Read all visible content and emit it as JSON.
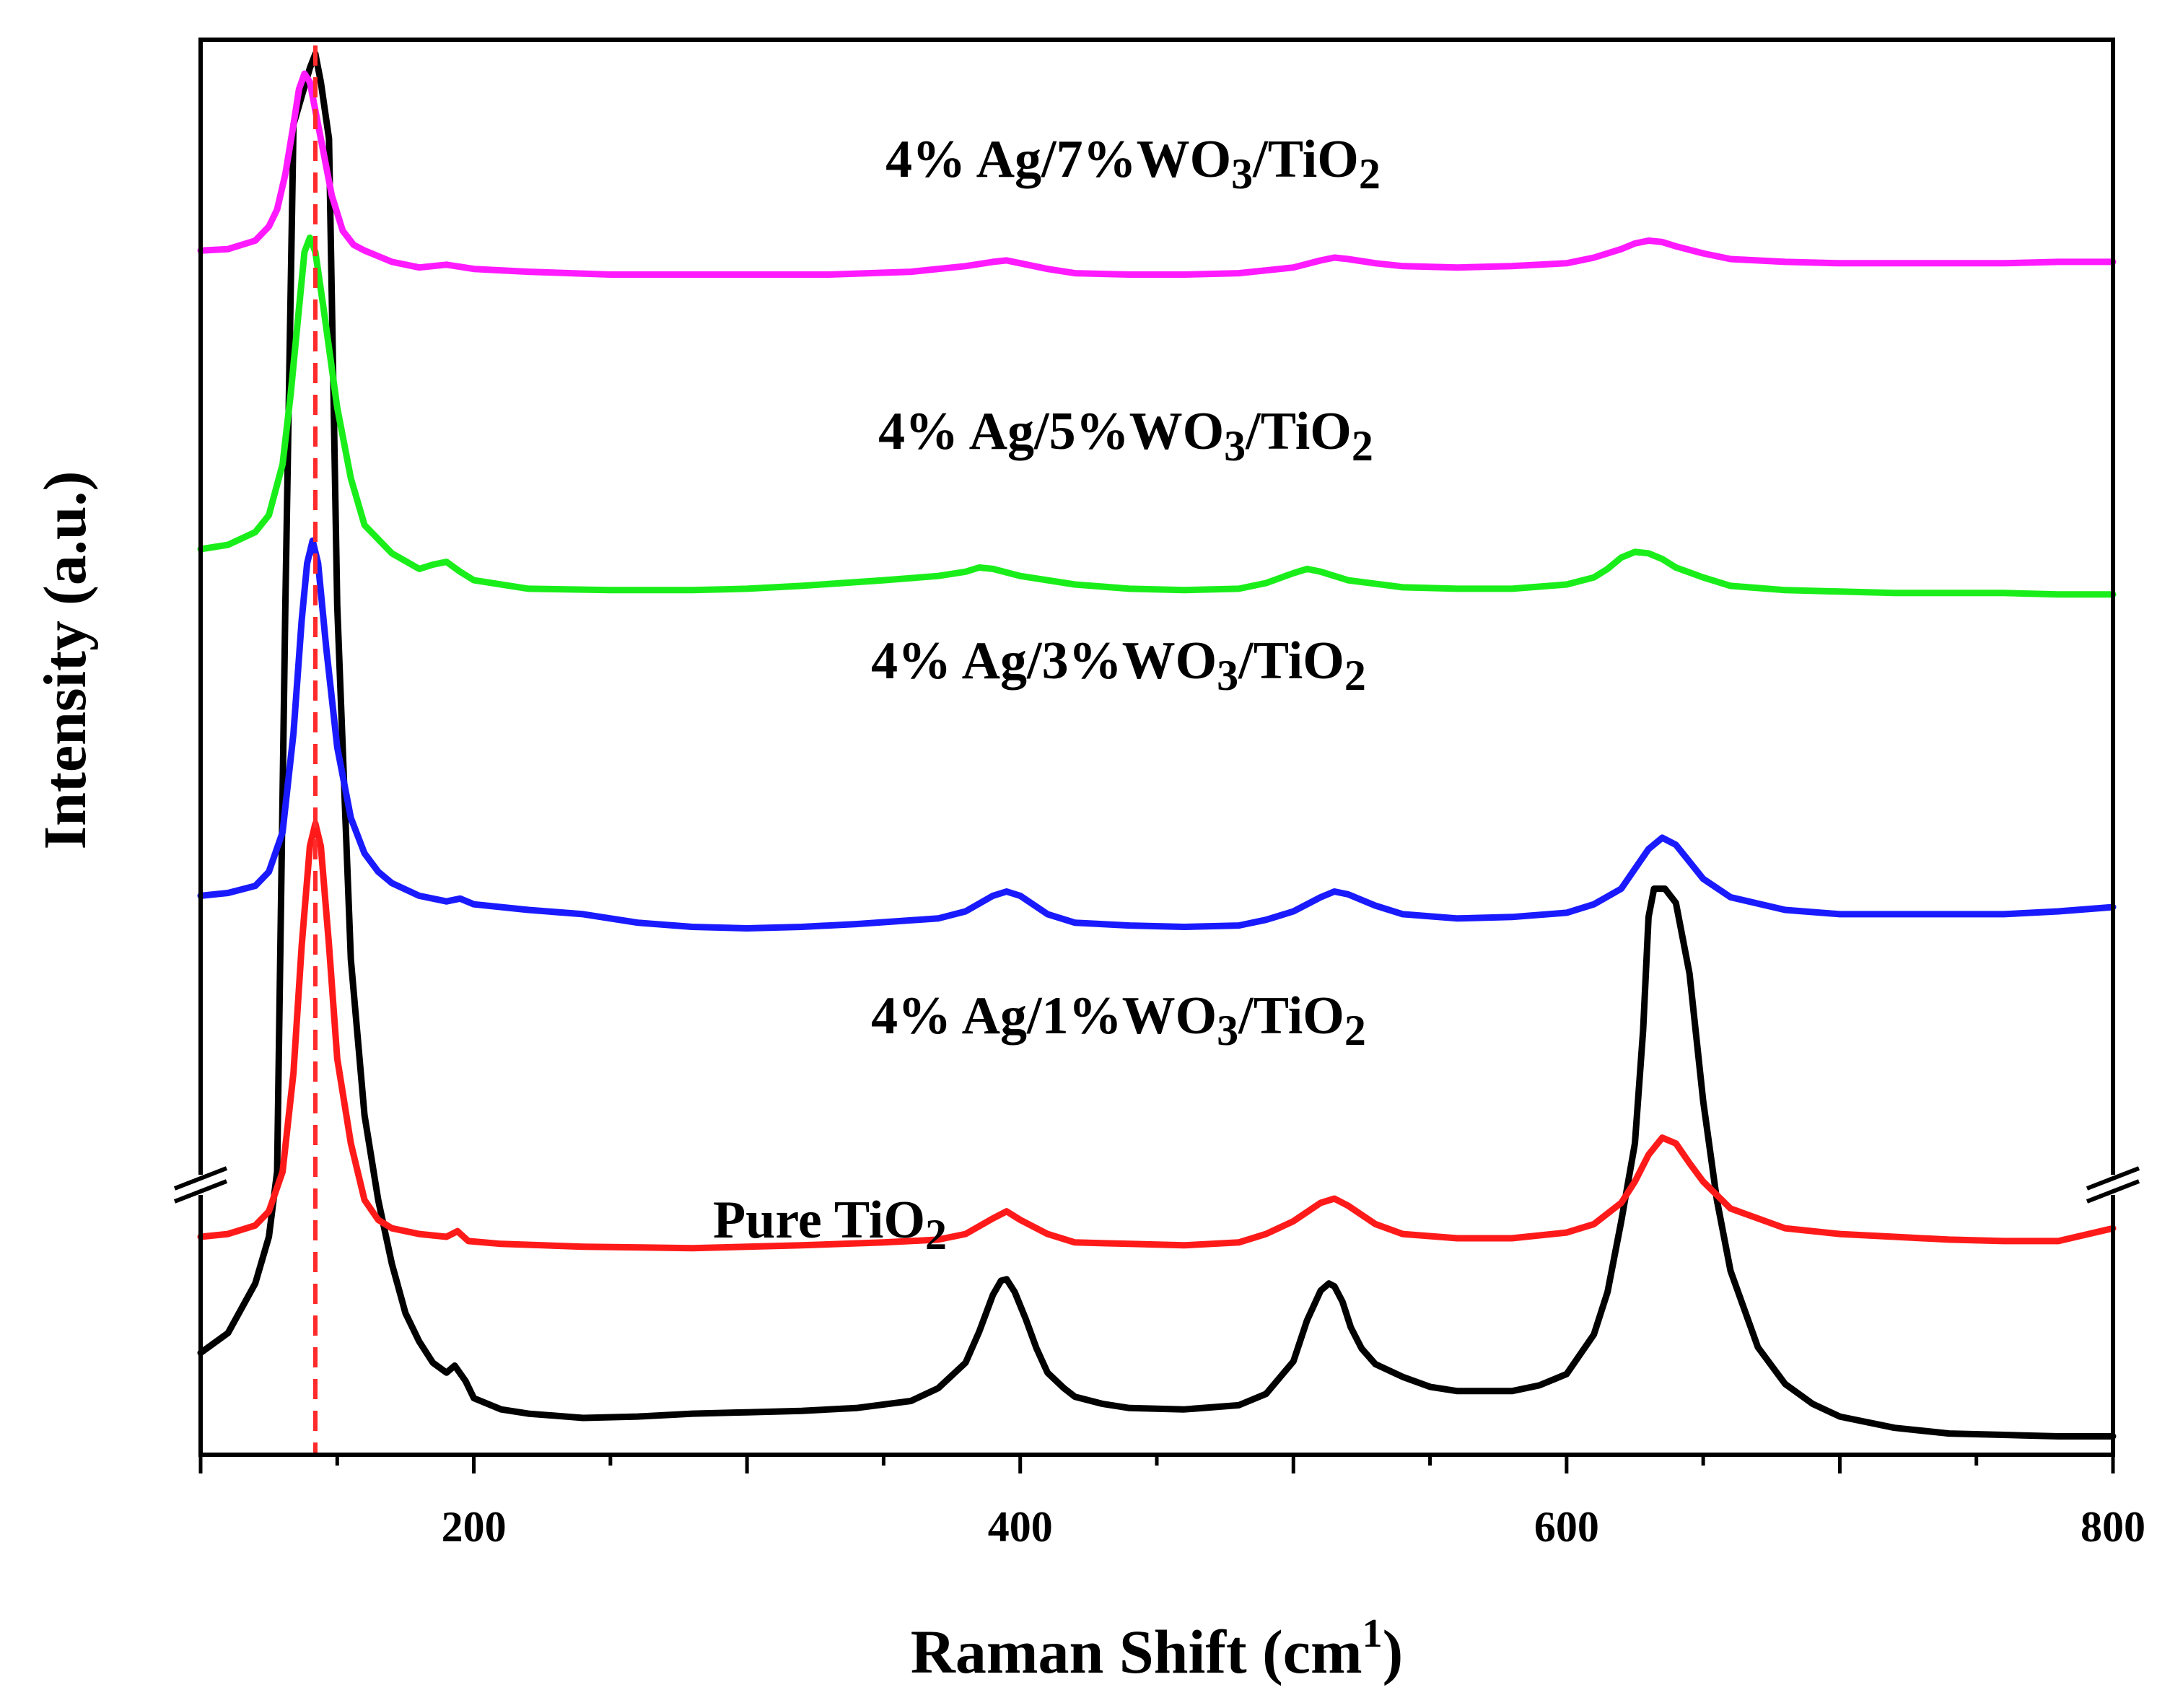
{
  "chart_data": {
    "type": "line",
    "title": "",
    "xlabel": "Raman Shift (cm",
    "xlabel_sup": "1",
    "xlabel_close": ")",
    "ylabel": "Intensity (a.u.)",
    "xlim": [
      100,
      800
    ],
    "ylim": [
      0,
      100
    ],
    "xticks": [
      200,
      400,
      600,
      800
    ],
    "y_ticks_shown": false,
    "axis_break": "y",
    "reference_line": {
      "x": 142,
      "color": "#ff2a2a",
      "style": "dashed"
    },
    "series": [
      {
        "name": "Pure TiO2",
        "color": "#000000",
        "label_parts": [
          "Pure TiO",
          "2"
        ],
        "x": [
          100,
          110,
          120,
          125,
          128,
          131,
          134,
          137,
          140,
          142,
          144,
          147,
          150,
          155,
          160,
          165,
          170,
          175,
          180,
          185,
          190,
          193,
          197,
          200,
          210,
          220,
          240,
          260,
          280,
          300,
          320,
          340,
          360,
          370,
          380,
          385,
          390,
          393,
          395,
          398,
          402,
          406,
          410,
          416,
          420,
          430,
          440,
          460,
          480,
          490,
          500,
          505,
          510,
          513,
          515,
          518,
          521,
          525,
          530,
          540,
          550,
          560,
          570,
          580,
          590,
          600,
          610,
          615,
          620,
          625,
          628,
          630,
          632,
          636,
          640,
          645,
          650,
          655,
          660,
          670,
          680,
          690,
          700,
          720,
          740,
          760,
          780,
          800
        ],
        "y": [
          7.2,
          8.6,
          12.1,
          15.4,
          20,
          60,
          94,
          96,
          98,
          99,
          97,
          93,
          60,
          35,
          24,
          18,
          13.5,
          10,
          8,
          6.5,
          5.8,
          6.3,
          5.2,
          4.0,
          3.2,
          2.9,
          2.6,
          2.7,
          2.9,
          3.0,
          3.1,
          3.3,
          3.8,
          4.7,
          6.5,
          8.7,
          11.3,
          12.3,
          12.4,
          11.5,
          9.6,
          7.5,
          5.8,
          4.7,
          4.1,
          3.6,
          3.3,
          3.2,
          3.5,
          4.3,
          6.6,
          9.5,
          11.6,
          12.1,
          11.9,
          10.8,
          9.0,
          7.5,
          6.4,
          5.5,
          4.8,
          4.5,
          4.5,
          4.5,
          4.9,
          5.7,
          8.5,
          11.5,
          16.5,
          22,
          30,
          38,
          40,
          40,
          39,
          34,
          25,
          18,
          13,
          7.6,
          5.0,
          3.6,
          2.7,
          1.9,
          1.5,
          1.4,
          1.3,
          1.3
        ]
      },
      {
        "name": "4% Ag/1%WO3/TiO2",
        "color": "#ff1a1a",
        "label_parts": [
          "4% Ag/1%WO",
          "3",
          "/TiO",
          "2"
        ],
        "x": [
          100,
          110,
          120,
          125,
          130,
          134,
          137,
          140,
          142,
          144,
          147,
          150,
          155,
          160,
          165,
          170,
          180,
          190,
          194,
          198,
          210,
          240,
          280,
          320,
          350,
          370,
          380,
          390,
          395,
          400,
          410,
          420,
          440,
          460,
          480,
          490,
          500,
          510,
          515,
          520,
          530,
          540,
          560,
          580,
          600,
          610,
          620,
          625,
          630,
          635,
          640,
          645,
          650,
          660,
          680,
          700,
          720,
          740,
          760,
          780,
          800
        ],
        "y": [
          15.4,
          15.6,
          16.2,
          17.2,
          20,
          27,
          36,
          43,
          44.6,
          43,
          36,
          28,
          22,
          18,
          16.6,
          16.0,
          15.6,
          15.4,
          15.8,
          15.1,
          14.9,
          14.7,
          14.6,
          14.8,
          15.0,
          15.2,
          15.6,
          16.7,
          17.2,
          16.6,
          15.6,
          15.0,
          14.9,
          14.8,
          15.0,
          15.6,
          16.5,
          17.8,
          18.1,
          17.6,
          16.3,
          15.6,
          15.3,
          15.3,
          15.7,
          16.3,
          17.8,
          19.3,
          21.2,
          22.4,
          22.0,
          20.6,
          19.3,
          17.4,
          16.0,
          15.6,
          15.4,
          15.2,
          15.1,
          15.1,
          16.0
        ]
      },
      {
        "name": "4% Ag/3%WO3/TiO2",
        "color": "#1a1aff",
        "label_parts": [
          "4% Ag/3%WO",
          "3",
          "/TiO",
          "2"
        ],
        "x": [
          100,
          110,
          120,
          125,
          130,
          134,
          137,
          139,
          141,
          143,
          146,
          150,
          155,
          160,
          165,
          170,
          180,
          190,
          195,
          200,
          220,
          240,
          260,
          280,
          300,
          320,
          340,
          370,
          380,
          390,
          395,
          400,
          410,
          420,
          440,
          460,
          480,
          490,
          500,
          510,
          515,
          520,
          530,
          540,
          560,
          580,
          600,
          610,
          620,
          625,
          630,
          635,
          640,
          645,
          650,
          660,
          680,
          700,
          720,
          740,
          760,
          780,
          800
        ],
        "y": [
          39.5,
          39.7,
          40.2,
          41.2,
          44,
          51,
          59,
          63,
          64.6,
          63,
          57,
          50,
          45,
          42.5,
          41.2,
          40.4,
          39.5,
          39.1,
          39.3,
          38.9,
          38.5,
          38.2,
          37.6,
          37.3,
          37.2,
          37.3,
          37.5,
          37.9,
          38.4,
          39.5,
          39.8,
          39.5,
          38.2,
          37.6,
          37.4,
          37.3,
          37.4,
          37.8,
          38.4,
          39.4,
          39.8,
          39.6,
          38.8,
          38.2,
          37.9,
          38.0,
          38.3,
          38.9,
          40.0,
          41.4,
          42.8,
          43.6,
          43.1,
          41.9,
          40.7,
          39.4,
          38.5,
          38.2,
          38.2,
          38.2,
          38.2,
          38.4,
          38.7
        ]
      },
      {
        "name": "4% Ag/5%WO3/TiO2",
        "color": "#1aee1a",
        "label_parts": [
          "4% Ag/5%WO",
          "3",
          "/TiO",
          "2"
        ],
        "x": [
          100,
          110,
          120,
          125,
          130,
          133,
          136,
          138,
          140,
          142,
          145,
          150,
          155,
          160,
          170,
          180,
          185,
          190,
          195,
          200,
          220,
          250,
          280,
          300,
          320,
          350,
          370,
          380,
          385,
          390,
          400,
          420,
          440,
          460,
          480,
          490,
          500,
          505,
          510,
          520,
          540,
          560,
          580,
          600,
          610,
          615,
          620,
          625,
          630,
          635,
          640,
          650,
          660,
          680,
          700,
          720,
          740,
          760,
          780,
          800
        ],
        "y": [
          64.0,
          64.3,
          65.2,
          66.4,
          70,
          75,
          81,
          85,
          86,
          85,
          81,
          74,
          69,
          65.7,
          63.7,
          62.6,
          62.9,
          63.1,
          62.4,
          61.8,
          61.2,
          61.1,
          61.1,
          61.2,
          61.4,
          61.8,
          62.1,
          62.4,
          62.7,
          62.6,
          62.1,
          61.5,
          61.2,
          61.1,
          61.2,
          61.6,
          62.3,
          62.6,
          62.4,
          61.8,
          61.3,
          61.2,
          61.2,
          61.5,
          62.0,
          62.6,
          63.4,
          63.8,
          63.7,
          63.3,
          62.7,
          62.0,
          61.4,
          61.1,
          61.0,
          60.9,
          60.9,
          60.9,
          60.8,
          60.8
        ]
      },
      {
        "name": "4% Ag/7%WO3/TiO2",
        "color": "#ff1aff",
        "label_parts": [
          "4% Ag/7%WO",
          "3",
          "/TiO",
          "2"
        ],
        "x": [
          100,
          110,
          120,
          125,
          128,
          131,
          134,
          136,
          138,
          140,
          142,
          145,
          148,
          152,
          156,
          160,
          165,
          170,
          180,
          190,
          200,
          220,
          250,
          280,
          300,
          330,
          360,
          380,
          390,
          395,
          400,
          410,
          420,
          440,
          460,
          480,
          500,
          510,
          515,
          520,
          530,
          540,
          560,
          580,
          600,
          610,
          620,
          625,
          630,
          635,
          640,
          650,
          660,
          680,
          700,
          720,
          740,
          760,
          780,
          800
        ],
        "y": [
          85.1,
          85.2,
          85.8,
          86.8,
          88,
          90.5,
          94,
          96.5,
          97.6,
          97,
          95,
          92,
          89,
          86.5,
          85.5,
          85.1,
          84.7,
          84.3,
          83.9,
          84.1,
          83.8,
          83.6,
          83.4,
          83.4,
          83.4,
          83.4,
          83.6,
          84.0,
          84.3,
          84.4,
          84.2,
          83.8,
          83.5,
          83.4,
          83.4,
          83.5,
          83.9,
          84.4,
          84.6,
          84.5,
          84.2,
          84.0,
          83.9,
          84.0,
          84.2,
          84.6,
          85.2,
          85.6,
          85.8,
          85.7,
          85.4,
          84.9,
          84.5,
          84.3,
          84.2,
          84.2,
          84.2,
          84.2,
          84.3,
          84.3
        ]
      }
    ]
  }
}
